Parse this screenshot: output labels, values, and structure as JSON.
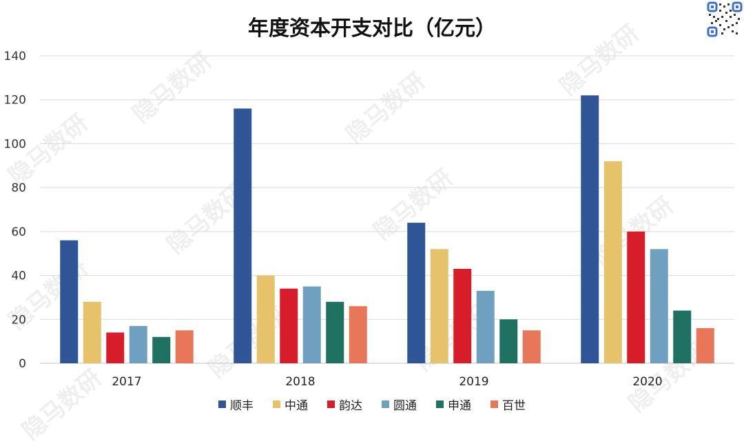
{
  "watermark": "隐马数研",
  "chart_data": {
    "type": "bar",
    "title": "年度资本开支对比（亿元）",
    "xlabel": "",
    "ylabel": "",
    "categories": [
      "2017",
      "2018",
      "2019",
      "2020"
    ],
    "ylim": [
      0,
      140
    ],
    "yticks": [
      0,
      20,
      40,
      60,
      80,
      100,
      120,
      140
    ],
    "grid": true,
    "legend_position": "bottom",
    "series": [
      {
        "name": "顺丰",
        "color": "#2f5597",
        "values": [
          56,
          116,
          64,
          122
        ]
      },
      {
        "name": "中通",
        "color": "#e6c26a",
        "values": [
          28,
          40,
          52,
          92
        ]
      },
      {
        "name": "韵达",
        "color": "#d71d2a",
        "values": [
          14,
          34,
          43,
          60
        ]
      },
      {
        "name": "圆通",
        "color": "#70a0c0",
        "values": [
          17,
          35,
          33,
          52
        ]
      },
      {
        "name": "申通",
        "color": "#1f7262",
        "values": [
          12,
          28,
          20,
          24
        ]
      },
      {
        "name": "百世",
        "color": "#e8775a",
        "values": [
          15,
          26,
          15,
          16
        ]
      }
    ]
  }
}
